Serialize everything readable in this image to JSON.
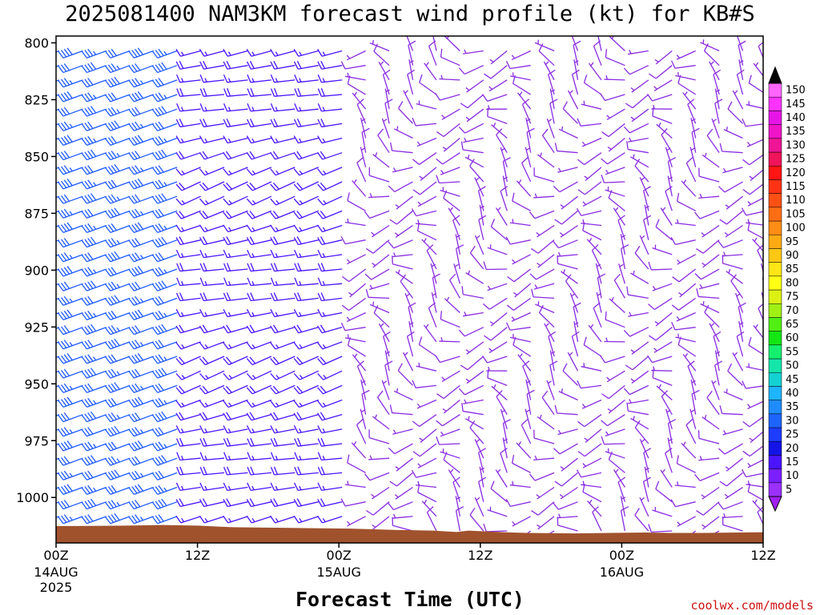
{
  "title": "2025081400 NAM3KM forecast wind profile (kt) for KB#S",
  "xlabel": "Forecast Time (UTC)",
  "credit": "coolwx.com/models",
  "chart_data": {
    "type": "wind_barb_profile",
    "ylabel": "",
    "y_axis": {
      "ticks": [
        800,
        825,
        850,
        875,
        900,
        925,
        950,
        975,
        1000
      ],
      "range": [
        797,
        1020
      ],
      "units": "hPa"
    },
    "x_axis": {
      "ticks": [
        {
          "label": "00Z",
          "sub1": "14AUG",
          "sub2": "2025"
        },
        {
          "label": "12Z",
          "sub1": "",
          "sub2": ""
        },
        {
          "label": "00Z",
          "sub1": "15AUG",
          "sub2": ""
        },
        {
          "label": "12Z",
          "sub1": "",
          "sub2": ""
        },
        {
          "label": "00Z",
          "sub1": "16AUG",
          "sub2": ""
        },
        {
          "label": "12Z",
          "sub1": "",
          "sub2": ""
        }
      ],
      "range_hours": [
        0,
        60
      ]
    },
    "colorbar": {
      "levels": [
        5,
        10,
        15,
        20,
        25,
        30,
        35,
        40,
        45,
        50,
        55,
        60,
        65,
        70,
        75,
        80,
        85,
        90,
        95,
        100,
        105,
        110,
        115,
        120,
        125,
        130,
        135,
        140,
        145,
        150
      ],
      "colors": [
        "#9b30ff",
        "#7a1fff",
        "#4a14ff",
        "#1414e6",
        "#1e3cff",
        "#1e64ff",
        "#1e8cff",
        "#1eb4ff",
        "#14d2d2",
        "#14e6aa",
        "#14f06e",
        "#14e614",
        "#50f014",
        "#a0f014",
        "#dcf014",
        "#ffff14",
        "#ffe614",
        "#ffc814",
        "#ffaa14",
        "#ff8c14",
        "#ff6e14",
        "#ff5014",
        "#ff3214",
        "#ff1414",
        "#f0145a",
        "#f01496",
        "#f014c8",
        "#e614e6",
        "#ff32ff",
        "#ff64ff"
      ],
      "top_arrow_color": "#000000",
      "bottom_arrow_color": "#a020f0"
    },
    "terrain_color": "#a0522d",
    "series": [
      {
        "hours": [
          0,
          12
        ],
        "speed_kt": 35,
        "direction_deg": 250,
        "color": "#1e5aff"
      },
      {
        "hours": [
          12,
          26
        ],
        "speed_kt": 15,
        "direction_deg": 260,
        "color": "#4a14ff"
      },
      {
        "hours": [
          26,
          60
        ],
        "speed_kt": 8,
        "direction_deg": 300,
        "color": "#8a2be2"
      }
    ]
  }
}
